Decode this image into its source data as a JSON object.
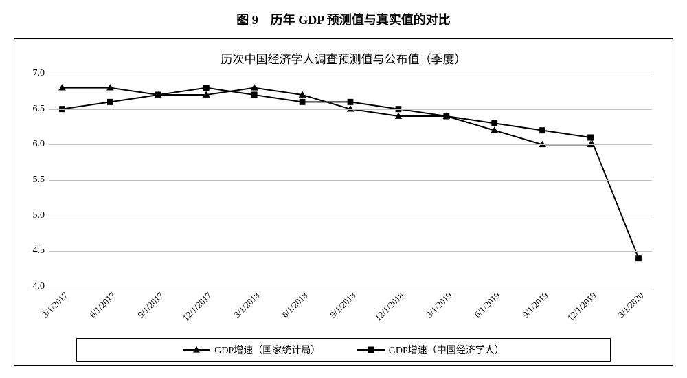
{
  "figure_title": "图 9　历年 GDP 预测值与真实值的对比",
  "chart": {
    "type": "line",
    "title": "历次中国经济学人调查预测值与公布值（季度）",
    "background_color": "#ffffff",
    "border_color": "#000000",
    "grid_color": "#c0c0c0",
    "line_color": "#000000",
    "x_categories": [
      "3/1/2017",
      "6/1/2017",
      "9/1/2017",
      "12/1/2017",
      "3/1/2018",
      "6/1/2018",
      "9/1/2018",
      "12/1/2018",
      "3/1/2019",
      "6/1/2019",
      "9/1/2019",
      "12/1/2019",
      "3/1/2020"
    ],
    "ylim": [
      4.0,
      7.0
    ],
    "ytick_step": 0.5,
    "yticks": [
      "4.0",
      "4.5",
      "5.0",
      "5.5",
      "6.0",
      "6.5",
      "7.0"
    ],
    "tick_fontsize": 14,
    "title_fontsize": 17,
    "xlabel_rotation_deg": -45,
    "line_width": 2,
    "marker_size": 9,
    "series": [
      {
        "name": "GDP增速（国家统计局）",
        "marker": "triangle",
        "color": "#000000",
        "values": [
          6.8,
          6.8,
          6.7,
          6.7,
          6.8,
          6.7,
          6.5,
          6.4,
          6.4,
          6.2,
          6.0,
          6.0,
          null
        ]
      },
      {
        "name": "GDP增速（中国经济学人）",
        "marker": "square",
        "color": "#000000",
        "values": [
          6.5,
          6.6,
          6.7,
          6.8,
          6.7,
          6.6,
          6.6,
          6.5,
          6.4,
          6.3,
          6.2,
          6.1,
          4.4
        ]
      }
    ],
    "legend_position": "bottom"
  }
}
